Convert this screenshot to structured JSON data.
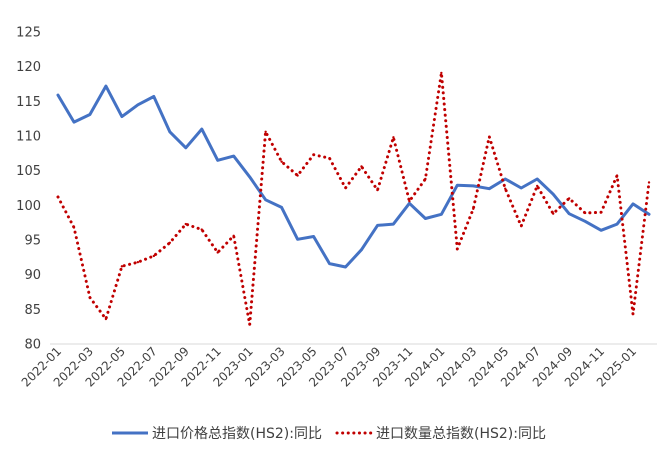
{
  "chart_data": {
    "type": "line",
    "title": "",
    "xlabel": "",
    "ylabel": "",
    "ylim": [
      80,
      125
    ],
    "yticks": [
      80,
      85,
      90,
      95,
      100,
      105,
      110,
      115,
      120,
      125
    ],
    "grid": "off",
    "legend_position": "bottom",
    "x": [
      "2022-01",
      "2022-02",
      "2022-03",
      "2022-04",
      "2022-05",
      "2022-06",
      "2022-07",
      "2022-08",
      "2022-09",
      "2022-10",
      "2022-11",
      "2022-12",
      "2023-01",
      "2023-02",
      "2023-03",
      "2023-04",
      "2023-05",
      "2023-06",
      "2023-07",
      "2023-08",
      "2023-09",
      "2023-10",
      "2023-11",
      "2023-12",
      "2024-01",
      "2024-02",
      "2024-03",
      "2024-04",
      "2024-05",
      "2024-06",
      "2024-07",
      "2024-08",
      "2024-09",
      "2024-10",
      "2024-11",
      "2024-12",
      "2025-01",
      "2025-02"
    ],
    "x_tick_labels": [
      "2022-01",
      "2022-03",
      "2022-05",
      "2022-07",
      "2022-09",
      "2022-11",
      "2023-01",
      "2023-03",
      "2023-05",
      "2023-07",
      "2023-09",
      "2023-11",
      "2024-01",
      "2024-03",
      "2024-05",
      "2024-07",
      "2024-09",
      "2024-11",
      "2025-01"
    ],
    "series": [
      {
        "name": "进口价格总指数(HS2):同比",
        "color": "#4472C4",
        "style": "solid",
        "values": [
          115.9,
          112.0,
          113.1,
          117.2,
          112.8,
          114.5,
          115.7,
          110.6,
          108.3,
          111.0,
          106.5,
          107.1,
          104.1,
          100.8,
          99.7,
          95.1,
          95.5,
          91.6,
          91.1,
          93.6,
          97.1,
          97.3,
          100.3,
          98.1,
          98.7,
          102.9,
          102.8,
          102.4,
          103.8,
          102.5,
          103.8,
          101.6,
          98.8,
          97.7,
          96.4,
          97.3,
          100.2,
          98.7
        ]
      },
      {
        "name": "进口数量总指数(HS2):同比",
        "color": "#C00000",
        "style": "dotted",
        "values": [
          101.2,
          96.8,
          86.7,
          83.6,
          91.2,
          91.8,
          92.7,
          94.6,
          97.3,
          96.5,
          93.2,
          95.6,
          82.8,
          110.6,
          106.3,
          104.3,
          107.3,
          106.8,
          102.5,
          105.6,
          102.2,
          109.8,
          100.6,
          103.8,
          119.1,
          93.7,
          99.5,
          109.9,
          102.4,
          97.0,
          102.8,
          98.8,
          101.0,
          98.9,
          99.0,
          104.3,
          84.3,
          103.3
        ]
      }
    ]
  }
}
